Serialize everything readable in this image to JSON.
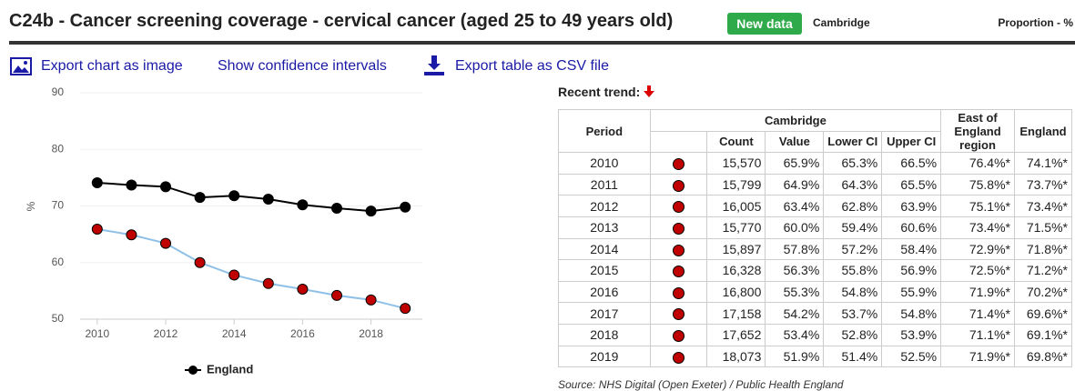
{
  "header": {
    "title": "C24b - Cancer screening coverage - cervical cancer (aged 25 to 49 years old)",
    "badge": "New data",
    "area": "Cambridge",
    "unit": "Proportion - %"
  },
  "toolbar": [
    "Export chart as image",
    "Show confidence intervals",
    "Export table as CSV file"
  ],
  "chart_data": {
    "type": "line",
    "y_label": "%",
    "x": [
      2010,
      2011,
      2012,
      2013,
      2014,
      2015,
      2016,
      2017,
      2018,
      2019
    ],
    "xlim": [
      2009.5,
      2019.5
    ],
    "xticks": [
      2010,
      2012,
      2014,
      2016,
      2018
    ],
    "ylim": [
      50,
      90
    ],
    "yticks": [
      50,
      60,
      70,
      80,
      90
    ],
    "grid": true,
    "series": [
      {
        "color": "#c00000",
        "line_color": "#8fc0e8",
        "values": [
          65.9,
          64.9,
          63.4,
          60.0,
          57.8,
          56.3,
          55.3,
          54.2,
          53.4,
          51.9
        ]
      },
      {
        "name": "England",
        "color": "#000000",
        "line_color": "#000000",
        "values": [
          74.1,
          73.7,
          73.4,
          71.5,
          71.8,
          71.2,
          70.2,
          69.6,
          69.1,
          69.8
        ]
      }
    ]
  },
  "trend_label": "Recent trend:",
  "table": {
    "head_top": [
      "Period",
      "Cambridge",
      "East of England region",
      "England"
    ],
    "head_sub": [
      "Count",
      "Value",
      "Lower CI",
      "Upper CI"
    ],
    "rows": [
      [
        "2010",
        "15,570",
        "65.9%",
        "65.3%",
        "66.5%",
        "76.4%*",
        "74.1%*"
      ],
      [
        "2011",
        "15,799",
        "64.9%",
        "64.3%",
        "65.5%",
        "75.8%*",
        "73.7%*"
      ],
      [
        "2012",
        "16,005",
        "63.4%",
        "62.8%",
        "63.9%",
        "75.1%*",
        "73.4%*"
      ],
      [
        "2013",
        "15,770",
        "60.0%",
        "59.4%",
        "60.6%",
        "73.4%*",
        "71.5%*"
      ],
      [
        "2014",
        "15,897",
        "57.8%",
        "57.2%",
        "58.4%",
        "72.9%*",
        "71.8%*"
      ],
      [
        "2015",
        "16,328",
        "56.3%",
        "55.8%",
        "56.9%",
        "72.5%*",
        "71.2%*"
      ],
      [
        "2016",
        "16,800",
        "55.3%",
        "54.8%",
        "55.9%",
        "71.9%*",
        "70.2%*"
      ],
      [
        "2017",
        "17,158",
        "54.2%",
        "53.7%",
        "54.8%",
        "71.4%*",
        "69.6%*"
      ],
      [
        "2018",
        "17,652",
        "53.4%",
        "52.8%",
        "53.9%",
        "71.1%*",
        "69.1%*"
      ],
      [
        "2019",
        "18,073",
        "51.9%",
        "51.4%",
        "52.5%",
        "71.9%*",
        "69.8%*"
      ]
    ]
  },
  "source": "Source: NHS Digital (Open Exeter) / Public Health England"
}
